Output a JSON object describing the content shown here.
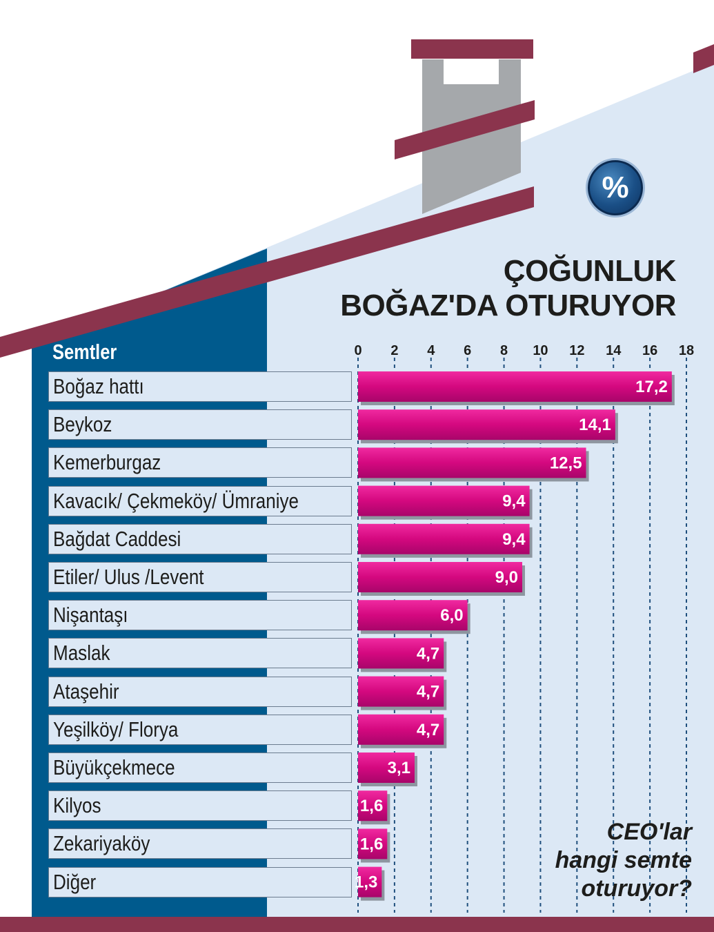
{
  "title_lines": [
    "ÇOĞUNLUK",
    "BOĞAZ'DA OTURUYOR"
  ],
  "column_header": "Semtler",
  "badge_symbol": "%",
  "footnote_lines": [
    "CEO'lar",
    "hangi semte",
    "oturuyor?"
  ],
  "colors": {
    "roof": "#8b344d",
    "panel_dark": "#005a8d",
    "panel_light": "#dce8f5",
    "chimney": "#a5a8ab",
    "bar": "#d4087f",
    "grid": "#1f4f7d"
  },
  "chart_data": {
    "type": "bar",
    "orientation": "horizontal",
    "title": "ÇOĞUNLUK BOĞAZ'DA OTURUYOR",
    "xlabel": "",
    "ylabel": "Semtler",
    "xlim": [
      0,
      18
    ],
    "ticks": [
      0,
      2,
      4,
      6,
      8,
      10,
      12,
      14,
      16,
      18
    ],
    "grid": true,
    "categories": [
      "Boğaz hattı",
      "Beykoz",
      "Kemerburgaz",
      "Kavacık/ Çekmeköy/ Ümraniye",
      "Bağdat Caddesi",
      "Etiler/ Ulus /Levent",
      "Nişantaşı",
      "Maslak",
      "Ataşehir",
      "Yeşilköy/ Florya",
      "Büyükçekmece",
      "Kilyos",
      "Zekariyaköy",
      "Diğer"
    ],
    "values": [
      17.2,
      14.1,
      12.5,
      9.4,
      9.4,
      9.0,
      6.0,
      4.7,
      4.7,
      4.7,
      3.1,
      1.6,
      1.6,
      1.3
    ],
    "value_labels": [
      "17,2",
      "14,1",
      "12,5",
      "9,4",
      "9,4",
      "9,0",
      "6,0",
      "4,7",
      "4,7",
      "4,7",
      "3,1",
      "1,6",
      "1,6",
      "1,3"
    ]
  }
}
